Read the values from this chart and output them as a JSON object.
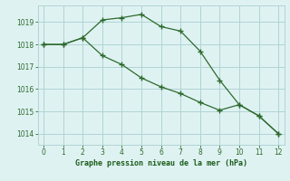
{
  "line1_x": [
    0,
    1,
    2,
    3,
    4,
    5,
    6,
    7,
    8,
    9,
    10,
    11,
    12
  ],
  "line1_y": [
    1018.0,
    1018.0,
    1018.3,
    1019.1,
    1019.2,
    1019.35,
    1018.8,
    1018.6,
    1017.7,
    1016.4,
    1015.3,
    1014.8,
    1014.0
  ],
  "line2_x": [
    0,
    1,
    2,
    3,
    4,
    5,
    6,
    7,
    8,
    9,
    10,
    11,
    12
  ],
  "line2_y": [
    1018.0,
    1018.0,
    1018.3,
    1017.5,
    1017.1,
    1016.5,
    1016.1,
    1015.8,
    1015.4,
    1015.05,
    1015.3,
    1014.8,
    1014.0
  ],
  "line_color": "#2d6a2d",
  "bg_color": "#dff2f2",
  "grid_color": "#b0d4d4",
  "xlabel": "Graphe pression niveau de la mer (hPa)",
  "xlabel_color": "#1a5c1a",
  "tick_color": "#2d6a2d",
  "ylim": [
    1013.5,
    1019.75
  ],
  "xlim": [
    -0.3,
    12.3
  ],
  "yticks": [
    1014,
    1015,
    1016,
    1017,
    1018,
    1019
  ],
  "xticks": [
    0,
    1,
    2,
    3,
    4,
    5,
    6,
    7,
    8,
    9,
    10,
    11,
    12
  ],
  "tick_fontsize": 5.5,
  "xlabel_fontsize": 6.0,
  "marker": "+",
  "markersize": 4.0,
  "linewidth": 0.9
}
